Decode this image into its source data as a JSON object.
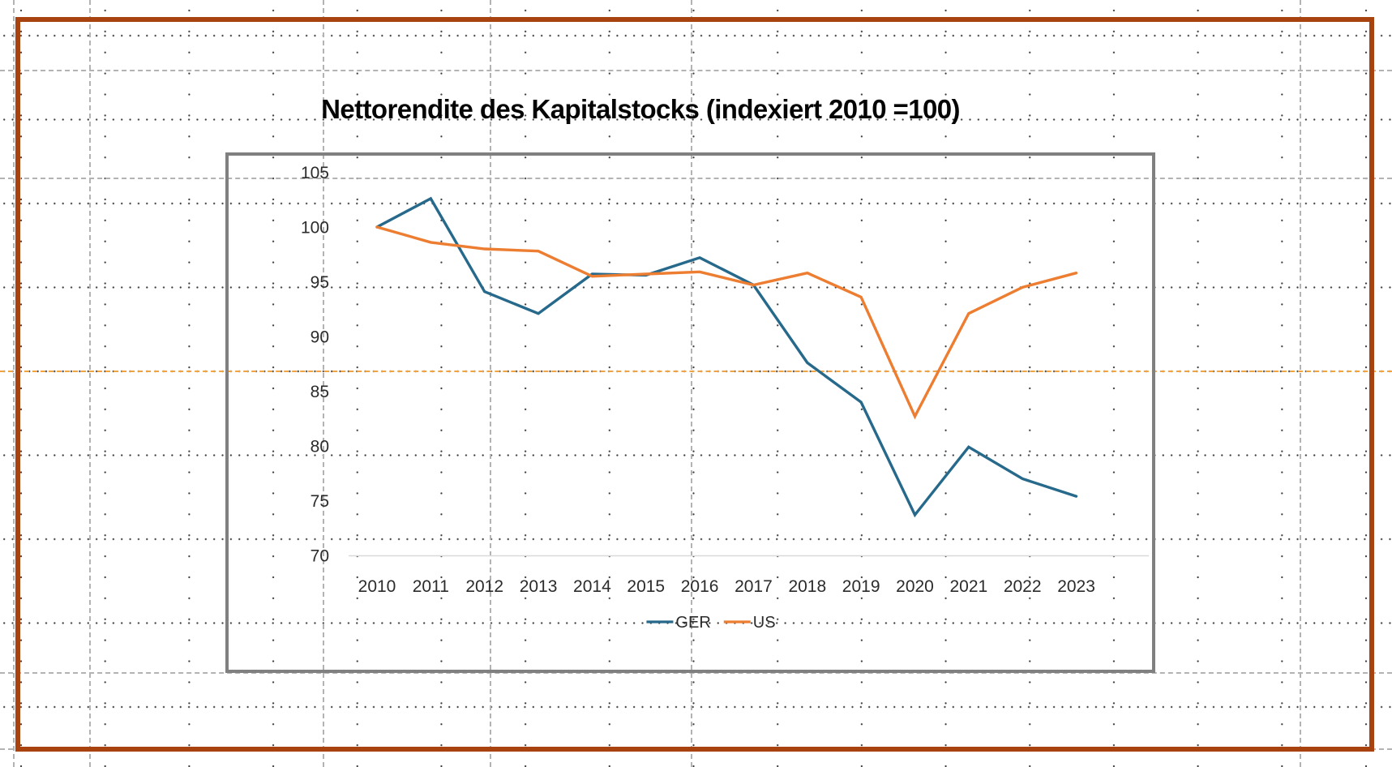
{
  "chart_data": {
    "type": "line",
    "title": "Nettorendite des Kapitalstocks (indexiert 2010 =100)",
    "categories": [
      "2010",
      "2011",
      "2012",
      "2013",
      "2014",
      "2015",
      "2016",
      "2017",
      "2018",
      "2019",
      "2020",
      "2021",
      "2022",
      "2023"
    ],
    "series": [
      {
        "name": "GER",
        "color": "#26698B",
        "values": [
          100,
          102.6,
          94.1,
          92.1,
          95.7,
          95.6,
          97.2,
          94.7,
          87.6,
          84.0,
          73.7,
          79.9,
          77.0,
          75.4
        ]
      },
      {
        "name": "US",
        "color": "#ED7D31",
        "values": [
          100,
          98.6,
          98.0,
          97.8,
          95.5,
          95.7,
          95.9,
          94.7,
          95.8,
          93.6,
          82.7,
          92.1,
          94.5,
          95.8
        ]
      }
    ],
    "ylim": [
      70,
      105
    ],
    "yticks": [
      105,
      100,
      95,
      90,
      85,
      80,
      75,
      70
    ],
    "xlabel": "",
    "ylabel": "",
    "grid": false,
    "legend_position": "bottom-center",
    "axis_line_color": "#D9D9D9"
  },
  "decorations": {
    "frame_color": "#A8430F",
    "chart_border_color": "#808080",
    "guide_color": "#B3B3B3",
    "guide_orange_color": "#F0A340",
    "grid_dot_color": "#3A3A3A"
  }
}
